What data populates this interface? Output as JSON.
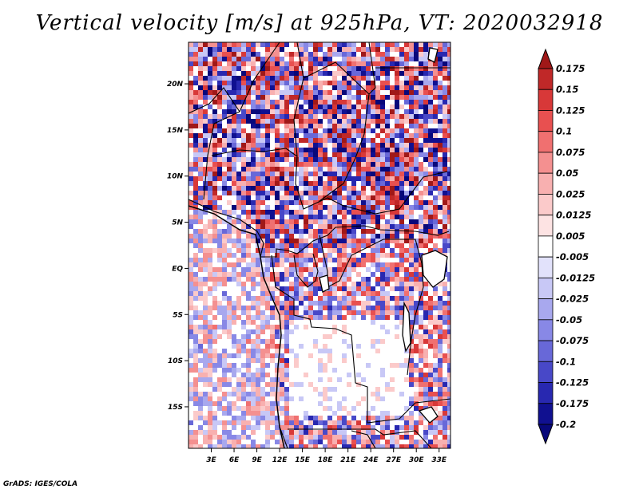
{
  "title": "Vertical velocity [m/s] at 925hPa, VT: 2020032918",
  "credit": "GrADS: IGES/COLA",
  "map": {
    "lon_range": [
      0,
      34.5
    ],
    "lat_range": [
      -19.5,
      24.5
    ],
    "lat_ticks": [
      {
        "label": "20N",
        "value": 20
      },
      {
        "label": "15N",
        "value": 15
      },
      {
        "label": "10N",
        "value": 10
      },
      {
        "label": "5N",
        "value": 5
      },
      {
        "label": "EQ",
        "value": 0
      },
      {
        "label": "5S",
        "value": -5
      },
      {
        "label": "10S",
        "value": -10
      },
      {
        "label": "15S",
        "value": -15
      }
    ],
    "lon_ticks": [
      {
        "label": "3E",
        "value": 3
      },
      {
        "label": "6E",
        "value": 6
      },
      {
        "label": "9E",
        "value": 9
      },
      {
        "label": "12E",
        "value": 12
      },
      {
        "label": "15E",
        "value": 15
      },
      {
        "label": "18E",
        "value": 18
      },
      {
        "label": "21E",
        "value": 21
      },
      {
        "label": "24E",
        "value": 24
      },
      {
        "label": "27E",
        "value": 27
      },
      {
        "label": "30E",
        "value": 30
      },
      {
        "label": "33E",
        "value": 33
      }
    ]
  },
  "colorbar": {
    "levels": [
      "0.175",
      "0.15",
      "0.125",
      "0.1",
      "0.075",
      "0.05",
      "0.025",
      "0.0125",
      "0.005",
      "-0.005",
      "-0.0125",
      "-0.025",
      "-0.05",
      "-0.075",
      "-0.1",
      "-0.125",
      "-0.175",
      "-0.2"
    ],
    "colors": [
      "#a01818",
      "#c02828",
      "#d83838",
      "#e85050",
      "#f07070",
      "#f49090",
      "#f8b0b0",
      "#fbcaca",
      "#fde3e3",
      "#ffffff",
      "#e2e2fb",
      "#c8c8f6",
      "#a8a8ee",
      "#8888e6",
      "#6868d8",
      "#4848c8",
      "#2828b0",
      "#101090",
      "#08087a"
    ]
  }
}
